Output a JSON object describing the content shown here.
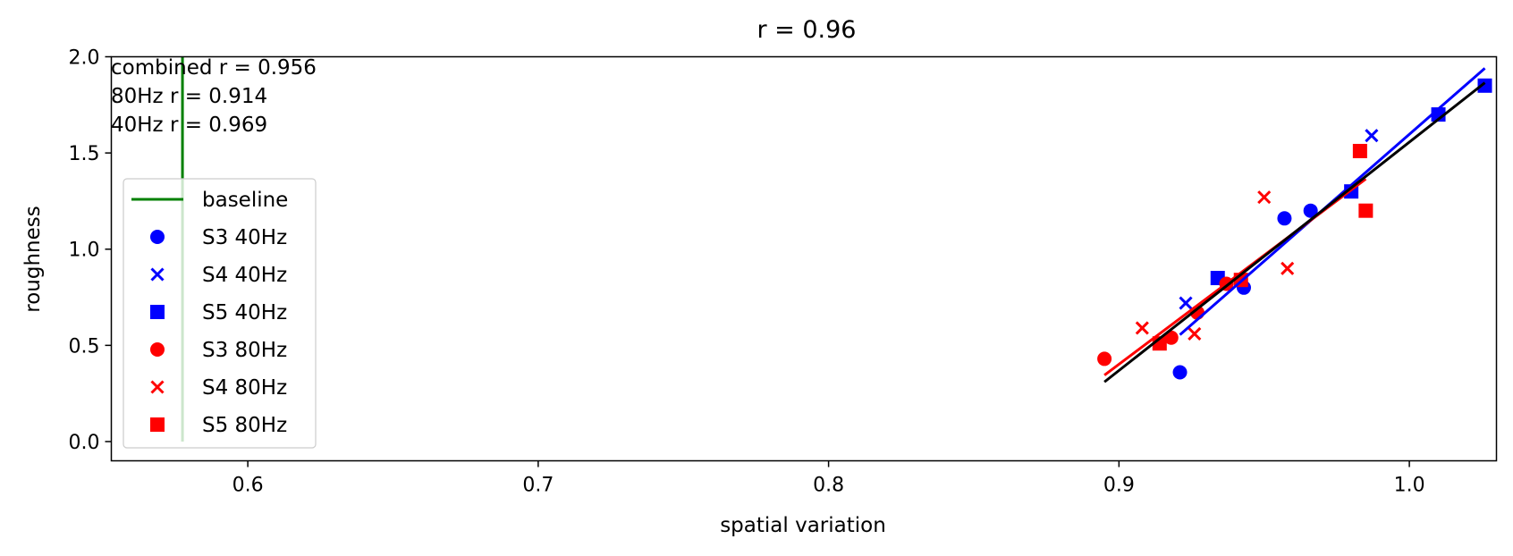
{
  "chart_data": {
    "type": "scatter",
    "title": "r = 0.96",
    "xlabel": "spatial variation",
    "ylabel": "roughness",
    "xlim": [
      0.553,
      1.03
    ],
    "ylim": [
      -0.1,
      2.0
    ],
    "xticks": [
      0.6,
      0.7,
      0.8,
      0.9,
      1.0
    ],
    "xtick_labels": [
      "0.6",
      "0.7",
      "0.8",
      "0.9",
      "1.0"
    ],
    "yticks": [
      0.0,
      0.5,
      1.0,
      1.5,
      2.0
    ],
    "ytick_labels": [
      "0.0",
      "0.5",
      "1.0",
      "1.5",
      "2.0"
    ],
    "grid": false,
    "legend_position": "left",
    "annotations": [
      "combined r = 0.956",
      "80Hz r = 0.914",
      "40Hz r = 0.969"
    ],
    "baseline": {
      "name": "baseline",
      "color": "#008000",
      "x": 0.5775,
      "y_range": [
        0.0,
        2.0
      ]
    },
    "series": [
      {
        "name": "S3 40Hz",
        "marker": "circle",
        "color": "#0000ff",
        "points": [
          [
            0.921,
            0.36
          ],
          [
            0.943,
            0.8
          ],
          [
            0.957,
            1.16
          ],
          [
            0.966,
            1.2
          ]
        ]
      },
      {
        "name": "S4 40Hz",
        "marker": "x",
        "color": "#0000ff",
        "points": [
          [
            0.923,
            0.72
          ],
          [
            0.987,
            1.59
          ]
        ]
      },
      {
        "name": "S5 40Hz",
        "marker": "square",
        "color": "#0000ff",
        "points": [
          [
            0.934,
            0.85
          ],
          [
            0.98,
            1.3
          ],
          [
            1.01,
            1.7
          ],
          [
            1.026,
            1.85
          ]
        ]
      },
      {
        "name": "S3 80Hz",
        "marker": "circle",
        "color": "#ff0000",
        "points": [
          [
            0.895,
            0.43
          ],
          [
            0.918,
            0.54
          ],
          [
            0.927,
            0.67
          ],
          [
            0.937,
            0.82
          ]
        ]
      },
      {
        "name": "S4 80Hz",
        "marker": "x",
        "color": "#ff0000",
        "points": [
          [
            0.908,
            0.59
          ],
          [
            0.926,
            0.56
          ],
          [
            0.95,
            1.27
          ],
          [
            0.958,
            0.9
          ]
        ]
      },
      {
        "name": "S5 80Hz",
        "marker": "square",
        "color": "#ff0000",
        "points": [
          [
            0.914,
            0.51
          ],
          [
            0.942,
            0.84
          ],
          [
            0.983,
            1.51
          ],
          [
            0.985,
            1.2
          ]
        ]
      }
    ],
    "fit_lines": [
      {
        "color": "#0000ff",
        "x": [
          0.921,
          1.026
        ],
        "y": [
          0.555,
          1.94
        ]
      },
      {
        "color": "#ff0000",
        "x": [
          0.895,
          0.985
        ],
        "y": [
          0.345,
          1.365
        ]
      },
      {
        "color": "#000000",
        "x": [
          0.895,
          1.026
        ],
        "y": [
          0.31,
          1.865
        ]
      }
    ]
  }
}
